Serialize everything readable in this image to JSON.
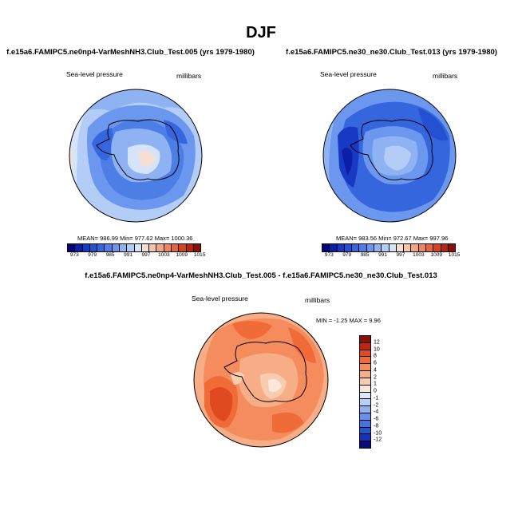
{
  "title": "DJF",
  "panels": [
    {
      "case": "f.e15a6.FAMIPC5.ne0np4-VarMeshNH3.Club_Test.005 (yrs 1979-1980)",
      "variable": "Sea-level pressure",
      "units": "millibars",
      "stats": "MEAN= 986.99   Min= 977.62   Max= 1000.36"
    },
    {
      "case": "f.e15a6.FAMIPC5.ne30_ne30.Club_Test.013 (yrs 1979-1980)",
      "variable": "Sea-level pressure",
      "units": "millibars",
      "stats": "MEAN= 983.56   Min= 972.67   Max= 997.96"
    },
    {
      "case": "f.e15a6.FAMIPC5.ne0np4-VarMeshNH3.Club_Test.005 - f.e15a6.FAMIPC5.ne30_ne30.Club_Test.013",
      "variable": "Sea-level pressure",
      "units": "millibars",
      "stats": "MIN = -1.25 MAX =   9.96"
    }
  ],
  "colorbar_top": {
    "ticks": [
      "973",
      "979",
      "985",
      "991",
      "997",
      "1003",
      "1009",
      "1015"
    ],
    "colors": [
      "#04047a",
      "#0c1ea8",
      "#1839c4",
      "#2451d2",
      "#3566de",
      "#4c7ee6",
      "#6b98ee",
      "#8fb2f3",
      "#b4cdf7",
      "#d6e4fa",
      "#f6e0d3",
      "#f8c5a8",
      "#f4a57f",
      "#ee8560",
      "#e5653f",
      "#d24322",
      "#b7260f",
      "#8c0f07"
    ]
  },
  "colorbar_diff": {
    "labels": [
      "12",
      "10",
      "8",
      "6",
      "4",
      "2",
      "1",
      "0",
      "-1",
      "-2",
      "-4",
      "-6",
      "-8",
      "-10",
      "-12"
    ],
    "colors": [
      "#8a0f07",
      "#c02712",
      "#e04a20",
      "#f06b38",
      "#f48c5d",
      "#f7ad86",
      "#f9ccb0",
      "#fbe7dc",
      "#dce8fb",
      "#b8cff6",
      "#8eb1f1",
      "#6890ea",
      "#4673e0",
      "#2752cf",
      "#1631b2",
      "#070c80"
    ]
  }
}
